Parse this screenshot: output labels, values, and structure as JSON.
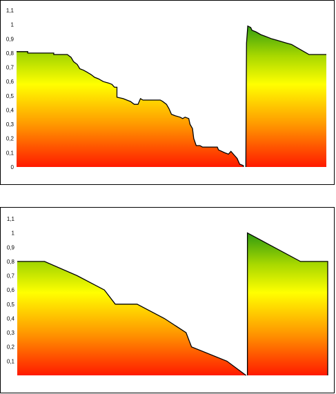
{
  "chart_data": [
    {
      "type": "area",
      "title": "",
      "xlabel": "",
      "ylabel": "",
      "ylim": [
        0,
        1.1
      ],
      "yticks": [
        "0",
        "0,1",
        "0,2",
        "0,3",
        "0,4",
        "0,5",
        "0,6",
        "0,7",
        "0,8",
        "0,9",
        "1",
        "1,1"
      ],
      "grid": false,
      "legend": "none",
      "fill": "vertical gradient green (top) to yellow to orange to red (bottom)",
      "colors": {
        "top": "#2e9a10",
        "upper": "#a8d800",
        "middle": "#ffff00",
        "lower": "#ff9900",
        "bottom": "#ff1a00",
        "line": "#000000"
      },
      "x_range": [
        0,
        100
      ],
      "segments": [
        {
          "name": "",
          "points": [
            [
              0,
              0.81
            ],
            [
              4.5,
              0.81
            ],
            [
              4.5,
              0.8
            ],
            [
              15,
              0.8
            ],
            [
              15,
              0.79
            ],
            [
              20.5,
              0.79
            ],
            [
              22,
              0.77
            ],
            [
              23,
              0.74
            ],
            [
              24.5,
              0.72
            ],
            [
              25.5,
              0.69
            ],
            [
              27,
              0.68
            ],
            [
              28,
              0.67
            ],
            [
              30,
              0.65
            ],
            [
              31.5,
              0.63
            ],
            [
              33,
              0.62
            ],
            [
              35,
              0.6
            ],
            [
              37,
              0.59
            ],
            [
              38.5,
              0.58
            ],
            [
              39.5,
              0.56
            ],
            [
              40.5,
              0.56
            ],
            [
              40.5,
              0.49
            ],
            [
              43,
              0.48
            ],
            [
              44.5,
              0.47
            ],
            [
              46,
              0.46
            ],
            [
              47.5,
              0.44
            ],
            [
              49,
              0.44
            ],
            [
              50,
              0.48
            ],
            [
              51,
              0.47
            ],
            [
              51,
              0.47
            ],
            [
              58,
              0.47
            ],
            [
              59,
              0.46
            ],
            [
              60.5,
              0.44
            ],
            [
              61.5,
              0.41
            ],
            [
              62.5,
              0.37
            ],
            [
              64,
              0.36
            ],
            [
              66,
              0.35
            ],
            [
              67,
              0.34
            ],
            [
              68,
              0.35
            ],
            [
              69.5,
              0.34
            ],
            [
              70,
              0.3
            ],
            [
              71,
              0.27
            ],
            [
              71.5,
              0.2
            ],
            [
              72.5,
              0.15
            ],
            [
              74,
              0.15
            ],
            [
              75,
              0.14
            ],
            [
              79,
              0.14
            ],
            [
              81,
              0.14
            ],
            [
              81.5,
              0.12
            ],
            [
              84,
              0.1
            ],
            [
              85.5,
              0.09
            ],
            [
              86.5,
              0.11
            ],
            [
              88,
              0.08
            ],
            [
              89,
              0.06
            ],
            [
              90,
              0.02
            ],
            [
              91.5,
              0.01
            ],
            [
              91.5,
              0.0
            ]
          ]
        },
        {
          "name": "",
          "points": [
            [
              92.5,
              0.0
            ],
            [
              92.8,
              0.87
            ],
            [
              93.3,
              0.99
            ],
            [
              94.5,
              0.98
            ],
            [
              95,
              0.96
            ],
            [
              96.5,
              0.95
            ],
            [
              97.5,
              0.94
            ],
            [
              98.5,
              0.93
            ],
            [
              100,
              0.92
            ],
            [
              101.5,
              0.91
            ],
            [
              103,
              0.9
            ],
            [
              105,
              0.89
            ],
            [
              107,
              0.88
            ],
            [
              109,
              0.87
            ],
            [
              111,
              0.86
            ],
            [
              113,
              0.84
            ],
            [
              115,
              0.82
            ],
            [
              117,
              0.8
            ],
            [
              118,
              0.79
            ],
            [
              125,
              0.79
            ]
          ]
        }
      ]
    },
    {
      "type": "area",
      "title": "",
      "xlabel": "",
      "ylabel": "",
      "ylim": [
        0,
        1.1
      ],
      "yticks": [
        "0,1",
        "0,2",
        "0,3",
        "0,4",
        "0,5",
        "0,6",
        "0,7",
        "0,8",
        "0,9",
        "1",
        "1,1"
      ],
      "grid": false,
      "legend": "none",
      "fill": "vertical gradient green (top) to yellow to orange to red (bottom)",
      "colors": {
        "top": "#2e9a10",
        "upper": "#a8d800",
        "middle": "#ffff00",
        "lower": "#ff9900",
        "bottom": "#ff1a00",
        "line": "#000000"
      },
      "x_range": [
        0,
        100
      ],
      "segments": [
        {
          "name": "",
          "points": [
            [
              0,
              0.8
            ],
            [
              10,
              0.8
            ],
            [
              22,
              0.7
            ],
            [
              32,
              0.6
            ],
            [
              36,
              0.5
            ],
            [
              44,
              0.5
            ],
            [
              54,
              0.4
            ],
            [
              62,
              0.3
            ],
            [
              64,
              0.2
            ],
            [
              77,
              0.1
            ],
            [
              84,
              0.0
            ]
          ]
        },
        {
          "name": "",
          "points": [
            [
              84.5,
              0.0
            ],
            [
              84.5,
              1.0
            ],
            [
              104,
              0.8
            ],
            [
              114,
              0.8
            ],
            [
              114,
              0.0
            ]
          ]
        }
      ]
    }
  ]
}
